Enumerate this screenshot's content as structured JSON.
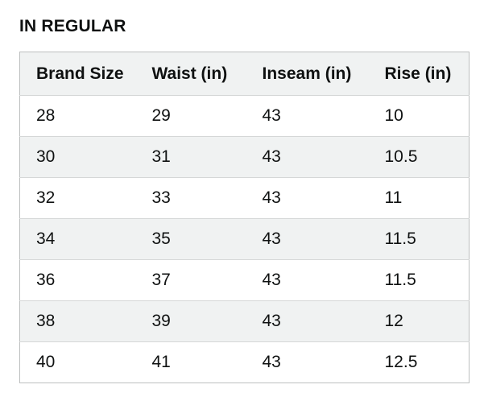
{
  "page_title": "IN REGULAR",
  "chart_data": {
    "type": "table",
    "title": "IN REGULAR",
    "columns": [
      "Brand Size",
      "Waist (in)",
      "Inseam (in)",
      "Rise (in)"
    ],
    "rows": [
      [
        "28",
        "29",
        "43",
        "10"
      ],
      [
        "30",
        "31",
        "43",
        "10.5"
      ],
      [
        "32",
        "33",
        "43",
        "11"
      ],
      [
        "34",
        "35",
        "43",
        "11.5"
      ],
      [
        "36",
        "37",
        "43",
        "11.5"
      ],
      [
        "38",
        "39",
        "43",
        "12"
      ],
      [
        "40",
        "41",
        "43",
        "12.5"
      ]
    ],
    "layout": {
      "striped_rows": true,
      "stripe_pattern": "even-data-rows-gray",
      "header_background": true
    }
  },
  "colors": {
    "text": "#0f1111",
    "page-bg": "#ffffff",
    "header-bg": "#f0f2f2",
    "stripe-bg": "#f0f2f2",
    "outer-border": "#bdbfbf",
    "row-divider": "#d5d7d7"
  }
}
